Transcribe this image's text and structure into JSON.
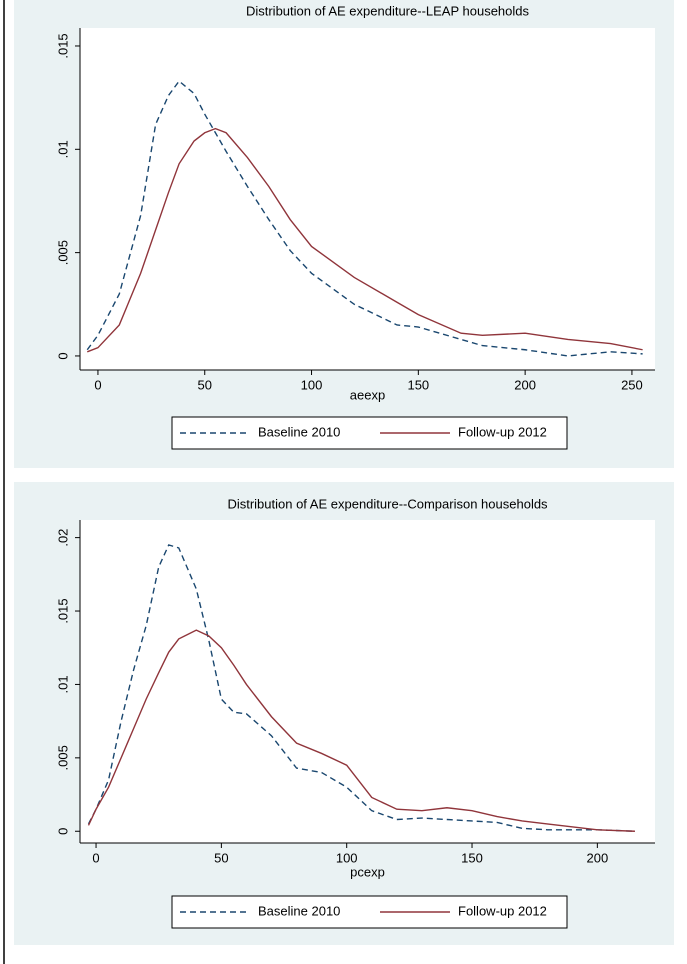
{
  "chart_data": [
    {
      "type": "line",
      "title": "Distribution of AE expenditure--LEAP households",
      "x_label": "aeexp",
      "x": [
        -5,
        0,
        10,
        20,
        27,
        33,
        38,
        45,
        50,
        55,
        60,
        70,
        80,
        90,
        100,
        120,
        140,
        150,
        170,
        180,
        200,
        220,
        240,
        255
      ],
      "series": [
        {
          "name": "Baseline 2010",
          "color": "#1a476f",
          "dash": true,
          "values": [
            0.0003,
            0.001,
            0.003,
            0.0068,
            0.0112,
            0.0126,
            0.0133,
            0.0127,
            0.0117,
            0.0108,
            0.0099,
            0.0082,
            0.0066,
            0.0051,
            0.004,
            0.0025,
            0.0015,
            0.0014,
            0.0008,
            0.0005,
            0.0003,
            0,
            0.0002,
            0.0001
          ]
        },
        {
          "name": "Follow-up 2012",
          "color": "#90353b",
          "dash": false,
          "values": [
            0.0002,
            0.0004,
            0.0015,
            0.004,
            0.0061,
            0.0079,
            0.0093,
            0.0104,
            0.0108,
            0.011,
            0.0108,
            0.0096,
            0.0082,
            0.0066,
            0.0053,
            0.0038,
            0.0026,
            0.002,
            0.0011,
            0.001,
            0.0011,
            0.0008,
            0.0006,
            0.0003
          ]
        }
      ],
      "xlim": [
        -8.4,
        260.8
      ],
      "xticks": [
        0,
        50,
        100,
        150,
        200,
        250
      ],
      "ylim": [
        -0.00068,
        0.01587
      ],
      "yticks": [
        0,
        {
          "value": 0.005,
          "label": ".005"
        },
        {
          "value": 0.01,
          "label": ".01"
        },
        {
          "value": 0.015,
          "label": ".015"
        }
      ],
      "grid": false,
      "legend": "bottom"
    },
    {
      "type": "line",
      "title": "Distribution of AE expenditure--Comparison households",
      "x_label": "pcexp",
      "x": [
        -3,
        0,
        5,
        10,
        15,
        20,
        25,
        29,
        33,
        40,
        45,
        50,
        55,
        60,
        70,
        80,
        90,
        100,
        110,
        120,
        130,
        140,
        150,
        160,
        170,
        180,
        200,
        215
      ],
      "series": [
        {
          "name": "Baseline 2010",
          "color": "#1a476f",
          "dash": true,
          "values": [
            0.0005,
            0.0015,
            0.0035,
            0.0075,
            0.011,
            0.014,
            0.018,
            0.0195,
            0.0193,
            0.0165,
            0.013,
            0.009,
            0.0081,
            0.008,
            0.0065,
            0.0043,
            0.004,
            0.003,
            0.0014,
            0.0008,
            0.0009,
            0.0008,
            0.0007,
            0.0006,
            0.0002,
            0.0001,
            0.0001,
            0
          ]
        },
        {
          "name": "Follow-up 2012",
          "color": "#90353b",
          "dash": false,
          "values": [
            0.0004,
            0.0015,
            0.003,
            0.005,
            0.007,
            0.009,
            0.0108,
            0.0122,
            0.0131,
            0.0137,
            0.0133,
            0.0125,
            0.0113,
            0.01,
            0.0078,
            0.006,
            0.0053,
            0.0045,
            0.0023,
            0.0015,
            0.0014,
            0.0016,
            0.0014,
            0.001,
            0.0007,
            0.0005,
            0.0001,
            0
          ]
        }
      ],
      "xlim": [
        -6.4,
        223
      ],
      "xticks": [
        0,
        50,
        100,
        150,
        200
      ],
      "ylim": [
        -0.0008,
        0.0212
      ],
      "yticks": [
        0,
        {
          "value": 0.005,
          "label": ".005"
        },
        {
          "value": 0.01,
          "label": ".01"
        },
        {
          "value": 0.015,
          "label": ".015"
        },
        {
          "value": 0.02,
          "label": ".02"
        }
      ],
      "grid": false,
      "legend": "bottom"
    }
  ]
}
